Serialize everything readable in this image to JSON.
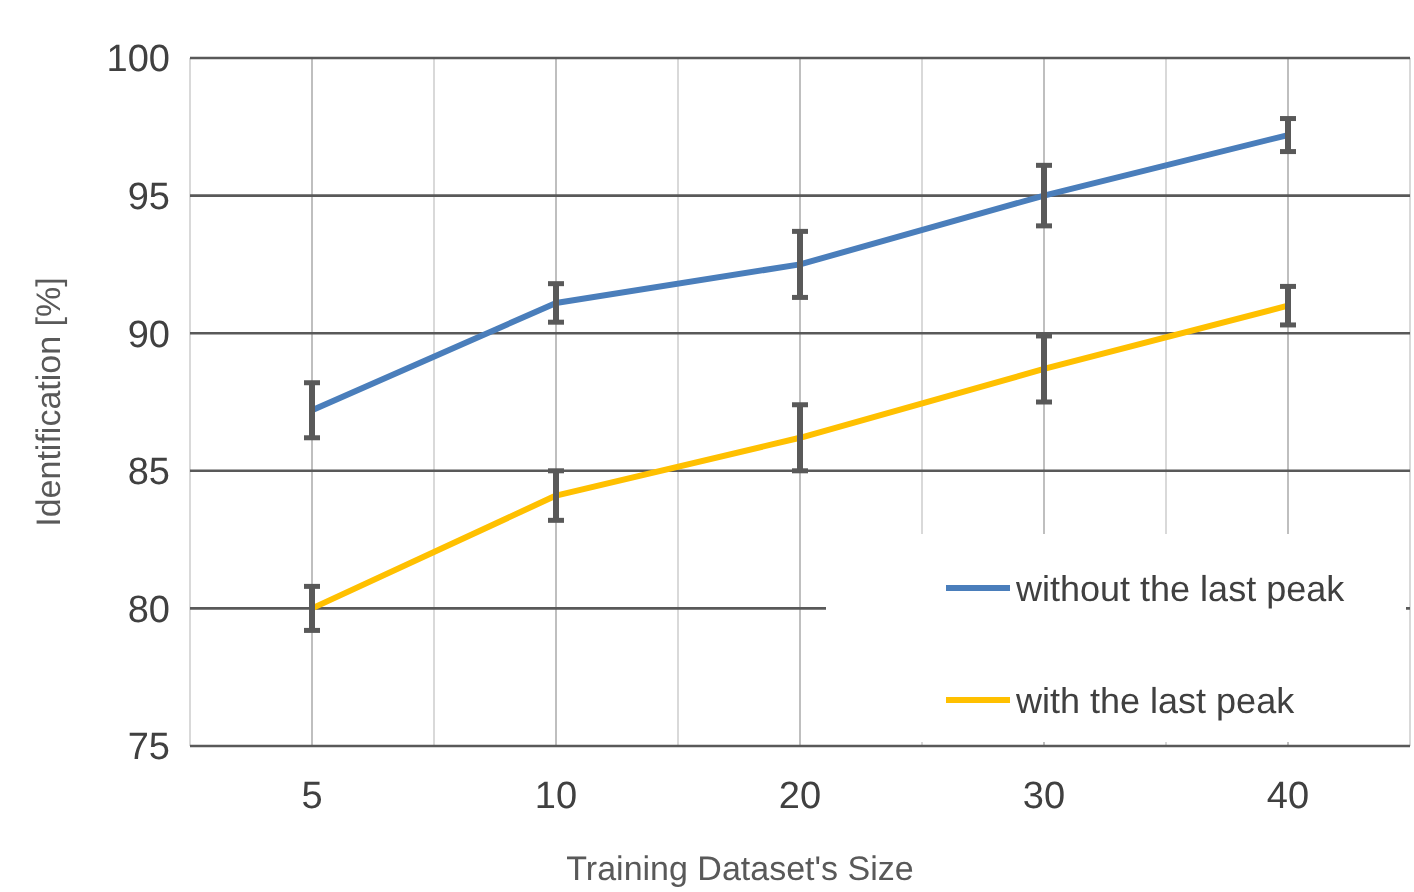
{
  "chart_data": {
    "type": "line",
    "xlabel": "Training Dataset's Size",
    "ylabel": "Identification [%]",
    "categories": [
      "5",
      "10",
      "20",
      "30",
      "40"
    ],
    "series": [
      {
        "name": "without the last peak",
        "color": "#4a7ebb",
        "values": [
          87.2,
          91.1,
          92.5,
          95.0,
          97.2
        ],
        "errors": [
          1.0,
          0.7,
          1.2,
          1.1,
          0.6
        ]
      },
      {
        "name": "with the last peak",
        "color": "#ffc000",
        "values": [
          80.0,
          84.1,
          86.2,
          88.7,
          91.0
        ],
        "errors": [
          0.8,
          0.9,
          1.2,
          1.2,
          0.7
        ]
      }
    ],
    "ylim": [
      75,
      100
    ],
    "yticks": [
      75,
      80,
      85,
      90,
      95,
      100
    ],
    "grid": true,
    "legend": "bottom right",
    "marker": "none",
    "line_style": "solid"
  }
}
